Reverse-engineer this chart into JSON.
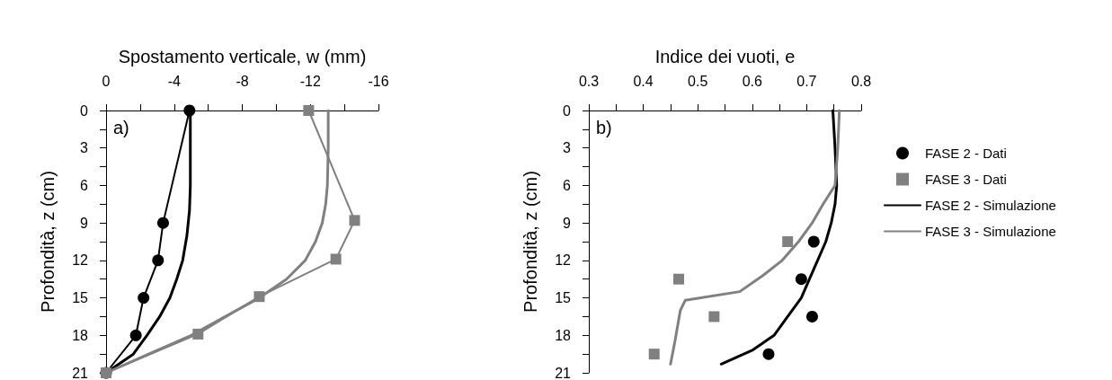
{
  "chart_data": [
    {
      "type": "line",
      "xlabel": "Spostamento verticale, w (mm)",
      "ylabel": "Profondità, z (cm)",
      "annotations": [
        "a)"
      ],
      "xlim": [
        0,
        -16
      ],
      "xticks": [
        0,
        {
          "value": -2,
          "label": null
        },
        -4,
        {
          "value": -6,
          "label": null
        },
        -8,
        {
          "value": -10,
          "label": null
        },
        -12,
        {
          "value": -14,
          "label": null
        },
        -16
      ],
      "ylim": [
        21,
        0
      ],
      "yticks": [
        0,
        {
          "value": 1.5,
          "label": null
        },
        3,
        {
          "value": 4.5,
          "label": null
        },
        6,
        {
          "value": 7.5,
          "label": null
        },
        9,
        {
          "value": 10.5,
          "label": null
        },
        12,
        {
          "value": 13.5,
          "label": null
        },
        15,
        {
          "value": 16.5,
          "label": null
        },
        18,
        {
          "value": 19.5,
          "label": null
        },
        21
      ],
      "grid": false,
      "line_style": "solid",
      "series": [
        {
          "marker": "circle",
          "color": "#000000",
          "x": [
            -4.9,
            -3.35,
            -3.05,
            -2.2,
            -1.75,
            0
          ],
          "values": [
            0,
            9,
            12,
            15,
            18,
            21
          ]
        },
        {
          "marker": "square",
          "color": "#808080",
          "x": [
            -11.9,
            -14.6,
            -13.5,
            -9.0,
            -5.4,
            0
          ],
          "values": [
            0,
            8.8,
            11.9,
            14.9,
            17.9,
            21
          ]
        },
        {
          "marker": "none",
          "color": "#000000",
          "x": [
            -4.95,
            -4.95,
            -4.95,
            -4.9,
            -4.75,
            -4.5,
            -4.15,
            -3.75,
            -3.15,
            -2.4,
            -1.6,
            0
          ],
          "values": [
            0,
            3,
            6,
            8,
            10,
            12,
            13.5,
            15,
            16.5,
            18,
            19.5,
            21
          ]
        },
        {
          "marker": "none",
          "color": "#808080",
          "x": [
            -13.05,
            -13.05,
            -13.0,
            -12.9,
            -12.7,
            -12.3,
            -11.7,
            -10.6,
            -9.0,
            -7.0,
            -5.0,
            -2.5,
            0
          ],
          "values": [
            0,
            3,
            6,
            7.5,
            9,
            10.5,
            12,
            13.5,
            15,
            16.5,
            18,
            19.5,
            21
          ]
        }
      ]
    },
    {
      "type": "scatter",
      "xlabel": "Indice dei vuoti, e",
      "ylabel": "Profondità, z (cm)",
      "annotations": [
        "b)"
      ],
      "legend": "right",
      "xlim": [
        0.3,
        0.8
      ],
      "xticks": [
        0.3,
        {
          "value": 0.35,
          "label": null
        },
        0.4,
        {
          "value": 0.45,
          "label": null
        },
        0.5,
        {
          "value": 0.55,
          "label": null
        },
        0.6,
        {
          "value": 0.65,
          "label": null
        },
        0.7,
        {
          "value": 0.75,
          "label": null
        },
        0.8
      ],
      "ylim": [
        21,
        0
      ],
      "yticks": [
        0,
        {
          "value": 1.5,
          "label": null
        },
        3,
        {
          "value": 4.5,
          "label": null
        },
        6,
        {
          "value": 7.5,
          "label": null
        },
        9,
        {
          "value": 10.5,
          "label": null
        },
        12,
        {
          "value": 13.5,
          "label": null
        },
        15,
        {
          "value": 16.5,
          "label": null
        },
        18,
        {
          "value": 19.5,
          "label": null
        },
        21
      ],
      "grid": false,
      "line_style": "solid",
      "series": [
        {
          "name": "FASE 2 - Dati",
          "marker": "circle",
          "color": "#000000",
          "x": [
            0.713,
            0.69,
            0.71,
            0.63
          ],
          "values": [
            10.5,
            13.5,
            16.5,
            19.5
          ]
        },
        {
          "name": "FASE 3 - Dati",
          "marker": "square",
          "color": "#808080",
          "x": [
            0.665,
            0.465,
            0.53,
            0.42
          ],
          "values": [
            10.5,
            13.5,
            16.5,
            19.5
          ]
        },
        {
          "name": "FASE 2 - Simulazione",
          "type": "line",
          "marker": "none",
          "color": "#000000",
          "x": [
            0.748,
            0.752,
            0.755,
            0.752,
            0.745,
            0.735,
            0.72,
            0.705,
            0.69,
            0.665,
            0.64,
            0.6,
            0.543
          ],
          "values": [
            0,
            3,
            6,
            7.5,
            9,
            10.5,
            12,
            13.5,
            15,
            16.5,
            18,
            19.2,
            20.3
          ]
        },
        {
          "name": "FASE 3 - Simulazione",
          "type": "line",
          "marker": "none",
          "color": "#808080",
          "x": [
            0.76,
            0.757,
            0.752,
            0.73,
            0.71,
            0.685,
            0.655,
            0.62,
            0.577,
            0.477,
            0.468,
            0.464,
            0.458,
            0.45
          ],
          "values": [
            0,
            3,
            6,
            7.5,
            9,
            10.5,
            12,
            13.2,
            14.5,
            15.2,
            16,
            17,
            18.5,
            20.3
          ]
        }
      ]
    }
  ]
}
